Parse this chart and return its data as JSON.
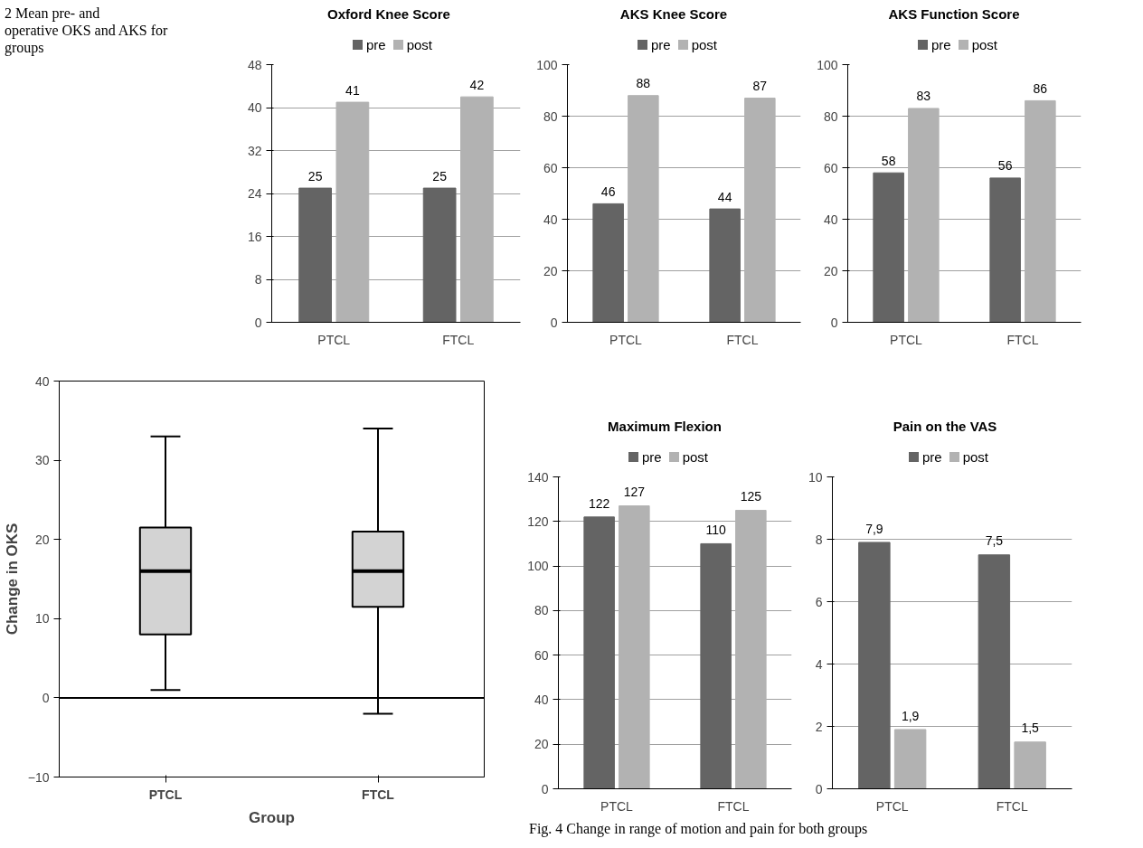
{
  "chart_data": [
    {
      "type": "bar",
      "title": "Oxford Knee Score",
      "categories": [
        "PTCL",
        "FTCL"
      ],
      "annotations": [
        "2 Mean pre- and\noperative OKS and AKS for\ngroups"
      ],
      "series": [
        {
          "name": "pre",
          "color": "#646464",
          "values": [
            25,
            25
          ]
        },
        {
          "name": "post",
          "color": "#b2b2b2",
          "values": [
            41,
            42
          ]
        }
      ],
      "ylim": [
        0,
        48
      ],
      "yticks": [
        0,
        8,
        16,
        24,
        32,
        40,
        48
      ],
      "grid": "y",
      "legend": "top",
      "data_labels": true
    },
    {
      "type": "bar",
      "title": "AKS Knee Score",
      "categories": [
        "PTCL",
        "FTCL"
      ],
      "series": [
        {
          "name": "pre",
          "color": "#646464",
          "values": [
            46,
            44
          ]
        },
        {
          "name": "post",
          "color": "#b2b2b2",
          "values": [
            88,
            87
          ]
        }
      ],
      "ylim": [
        0,
        100
      ],
      "yticks": [
        0,
        20,
        40,
        60,
        80,
        100
      ],
      "grid": "y",
      "legend": "top",
      "data_labels": true
    },
    {
      "type": "bar",
      "title": "AKS Function Score",
      "categories": [
        "PTCL",
        "FTCL"
      ],
      "series": [
        {
          "name": "pre",
          "color": "#646464",
          "values": [
            58,
            56
          ]
        },
        {
          "name": "post",
          "color": "#b2b2b2",
          "values": [
            83,
            86
          ]
        }
      ],
      "ylim": [
        0,
        100
      ],
      "yticks": [
        0,
        20,
        40,
        60,
        80,
        100
      ],
      "grid": "y",
      "legend": "top",
      "data_labels": true
    },
    {
      "type": "box",
      "categories": [
        "PTCL",
        "FTCL"
      ],
      "xlabel": "Group",
      "ylabel": "Change in OKS",
      "color": "#d3d3d3",
      "boxes": [
        {
          "low": 1,
          "q1": 8,
          "median": 16,
          "q3": 21.5,
          "high": 33
        },
        {
          "low": -2,
          "q1": 11.5,
          "median": 16,
          "q3": 21,
          "high": 34
        }
      ],
      "ylim": [
        -10,
        40
      ],
      "yticks": [
        -10,
        0,
        10,
        20,
        30,
        40
      ],
      "grid": false,
      "ref_lines": [
        {
          "axis": "y",
          "value": 0,
          "color": "#000000"
        }
      ]
    },
    {
      "type": "bar",
      "title": "Maximum Flexion",
      "categories": [
        "PTCL",
        "FTCL"
      ],
      "series": [
        {
          "name": "pre",
          "color": "#646464",
          "values": [
            122,
            110
          ]
        },
        {
          "name": "post",
          "color": "#b2b2b2",
          "values": [
            127,
            125
          ]
        }
      ],
      "ylim": [
        0,
        140
      ],
      "yticks": [
        0,
        20,
        40,
        60,
        80,
        100,
        120,
        140
      ],
      "grid": "y",
      "legend": "top",
      "data_labels": true
    },
    {
      "type": "bar",
      "title": "Pain on the VAS",
      "categories": [
        "PTCL",
        "FTCL"
      ],
      "annotations": [
        "Fig. 4  Change in range of motion and pain for both groups"
      ],
      "series": [
        {
          "name": "pre",
          "color": "#646464",
          "values": [
            7.9,
            7.5
          ],
          "value_labels": [
            "7,9",
            "7,5"
          ]
        },
        {
          "name": "post",
          "color": "#b2b2b2",
          "values": [
            1.9,
            1.5
          ],
          "value_labels": [
            "1,9",
            "1,5"
          ]
        }
      ],
      "ylim": [
        0,
        10
      ],
      "yticks": [
        0,
        2,
        4,
        6,
        8,
        10
      ],
      "grid": "y",
      "legend": "top",
      "data_labels": true
    }
  ]
}
